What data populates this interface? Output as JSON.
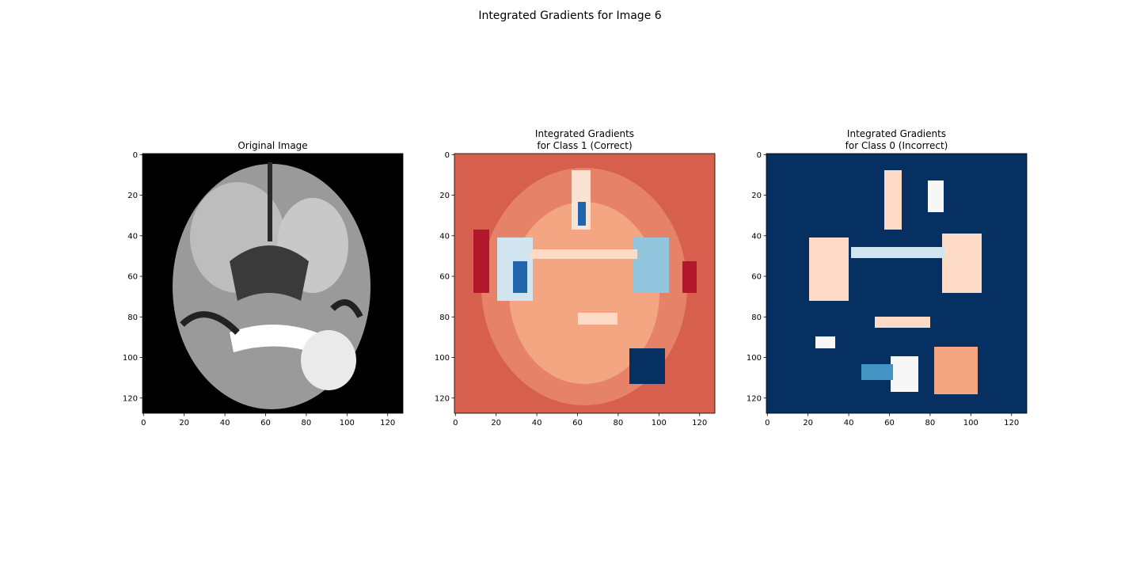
{
  "title": "Integrated Gradients for Image 6",
  "chart_data": [
    {
      "type": "image",
      "title": [
        "Original Image"
      ],
      "xlim": [
        -0.5,
        127.5
      ],
      "ylim": [
        127.5,
        -0.5
      ],
      "xticks": [
        0,
        20,
        40,
        60,
        80,
        100,
        120
      ],
      "yticks": [
        0,
        20,
        40,
        60,
        80,
        100,
        120
      ]
    },
    {
      "type": "image",
      "title": [
        "Integrated Gradients",
        "for Class 1 (Correct)"
      ],
      "xlim": [
        -0.5,
        127.5
      ],
      "ylim": [
        127.5,
        -0.5
      ],
      "xticks": [
        0,
        20,
        40,
        60,
        80,
        100,
        120
      ],
      "yticks": [
        0,
        20,
        40,
        60,
        80,
        100,
        120
      ]
    },
    {
      "type": "image",
      "title": [
        "Integrated Gradients",
        "for Class 0 (Incorrect)"
      ],
      "xlim": [
        -0.5,
        127.5
      ],
      "ylim": [
        127.5,
        -0.5
      ],
      "xticks": [
        0,
        20,
        40,
        60,
        80,
        100,
        120
      ],
      "yticks": [
        0,
        20,
        40,
        60,
        80,
        100,
        120
      ]
    }
  ]
}
